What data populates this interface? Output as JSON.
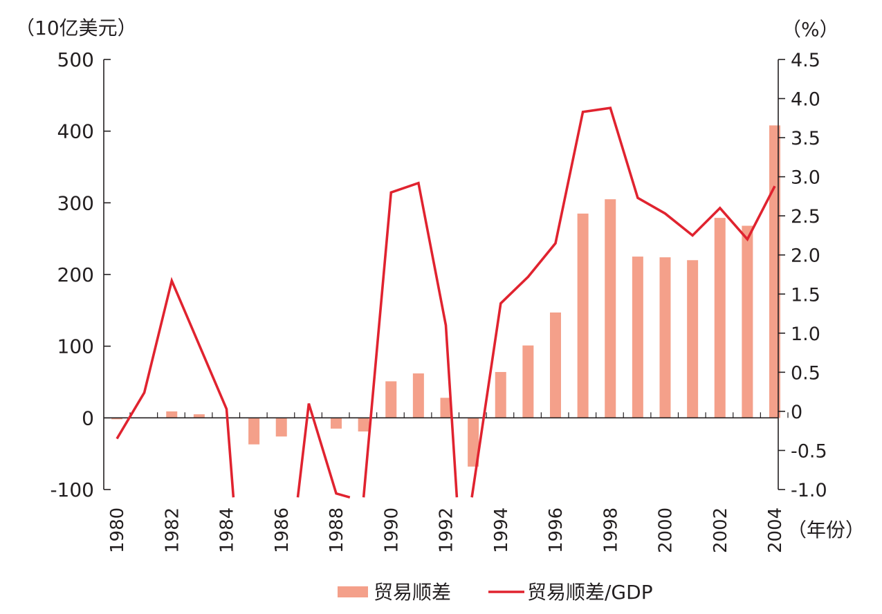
{
  "chart_data": {
    "type": "bar+line",
    "left_axis_unit": "（10亿美元）",
    "right_axis_unit": "（%）",
    "x_axis_unit": "（年份）",
    "x": [
      1980,
      1981,
      1982,
      1983,
      1984,
      1985,
      1986,
      1987,
      1988,
      1989,
      1990,
      1991,
      1992,
      1993,
      1994,
      1995,
      1996,
      1997,
      1998,
      1999,
      2000,
      2001,
      2002,
      2003,
      2004
    ],
    "x_tick_labels": [
      "1980",
      "1982",
      "1984",
      "1986",
      "1988",
      "1990",
      "1992",
      "1994",
      "1996",
      "1998",
      "2000",
      "2002",
      "2004"
    ],
    "ylim_left": [
      -100,
      500
    ],
    "yticks_left": [
      "500",
      "400",
      "300",
      "200",
      "100",
      "0",
      "-100"
    ],
    "ylim_right": [
      -1.0,
      4.5
    ],
    "yticks_right": [
      "4.5",
      "4.0",
      "3.5",
      "3.0",
      "2.5",
      "2.0",
      "1.5",
      "1.0",
      "0.5",
      "0",
      "-0.5",
      "-1.0"
    ],
    "series": [
      {
        "name": "贸易顺差",
        "type": "bar",
        "axis": "left",
        "color": "#f4a08a",
        "values": [
          -2,
          null,
          9,
          5,
          null,
          -37,
          -26,
          null,
          -15,
          -19,
          51,
          62,
          28,
          -68,
          64,
          101,
          147,
          285,
          305,
          225,
          224,
          220,
          279,
          268,
          408
        ]
      },
      {
        "name": "贸易顺差/GDP",
        "type": "line",
        "axis": "right",
        "color": "#e0232f",
        "points": [
          [
            1980.0,
            -0.35
          ],
          [
            1981.0,
            0.24
          ],
          [
            1982.0,
            1.67
          ],
          [
            1984.0,
            0.03
          ],
          [
            1984.25,
            -1.1
          ],
          [
            1986.6,
            -1.1
          ],
          [
            1987.0,
            0.1
          ],
          [
            1988.0,
            -1.05
          ],
          [
            1988.5,
            -1.1
          ],
          [
            1989.0,
            -1.1
          ],
          [
            1990.0,
            2.8
          ],
          [
            1991.0,
            2.92
          ],
          [
            1992.0,
            1.1
          ],
          [
            1992.4,
            -1.1
          ],
          [
            1992.95,
            -1.1
          ],
          [
            1994.0,
            1.38
          ],
          [
            1995.0,
            1.72
          ],
          [
            1996.0,
            2.15
          ],
          [
            1997.0,
            3.83
          ],
          [
            1998.0,
            3.88
          ],
          [
            1999.0,
            2.73
          ],
          [
            2000.0,
            2.53
          ],
          [
            2001.0,
            2.25
          ],
          [
            2002.0,
            2.6
          ],
          [
            2003.0,
            2.2
          ],
          [
            2004.0,
            2.88
          ]
        ]
      }
    ]
  }
}
